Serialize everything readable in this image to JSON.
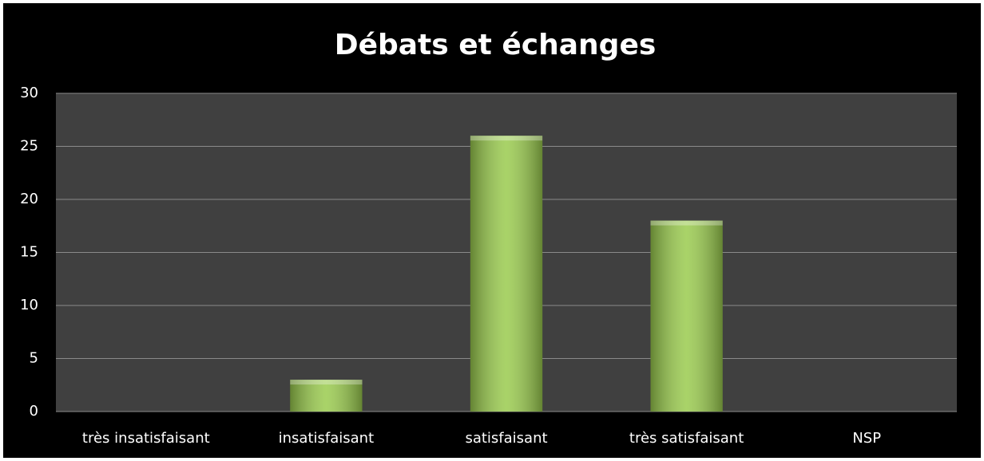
{
  "chart_data": {
    "type": "bar",
    "title": "Débats et échanges",
    "categories": [
      "très insatisfaisant",
      "insatisfaisant",
      "satisfaisant",
      "très satisfaisant",
      "NSP"
    ],
    "values": [
      0,
      3,
      26,
      18,
      0
    ],
    "color": "#9acb4e",
    "ylim": [
      0,
      30
    ],
    "yticks": [
      0,
      5,
      10,
      15,
      20,
      25,
      30
    ],
    "grid": true
  }
}
